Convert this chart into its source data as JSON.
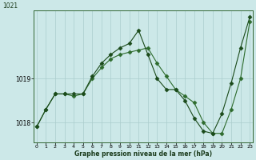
{
  "xlabel": "Graphe pression niveau de la mer (hPa)",
  "bg_color": "#cce8e8",
  "grid_color": "#aacccc",
  "line_color_1": "#2d6b2d",
  "line_color_2": "#1a4a1a",
  "marker": "D",
  "markersize": 2.5,
  "series1_x": [
    0,
    1,
    2,
    3,
    4,
    5,
    6,
    7,
    8,
    9,
    10,
    11,
    12,
    13,
    14,
    15,
    16,
    17,
    18,
    19,
    20,
    21,
    22,
    23
  ],
  "series1_y": [
    1017.9,
    1018.3,
    1018.65,
    1018.65,
    1018.6,
    1018.65,
    1019.0,
    1019.25,
    1019.45,
    1019.55,
    1019.6,
    1019.65,
    1019.7,
    1019.35,
    1019.05,
    1018.75,
    1018.6,
    1018.45,
    1018.0,
    1017.75,
    1017.75,
    1018.3,
    1019.0,
    1020.3
  ],
  "series2_x": [
    0,
    1,
    2,
    3,
    4,
    5,
    6,
    7,
    8,
    9,
    10,
    11,
    12,
    13,
    14,
    15,
    16,
    17,
    18,
    19,
    20,
    21,
    22,
    23
  ],
  "series2_y": [
    1017.9,
    1018.3,
    1018.65,
    1018.65,
    1018.65,
    1018.65,
    1019.05,
    1019.35,
    1019.55,
    1019.7,
    1019.8,
    1020.1,
    1019.55,
    1019.0,
    1018.75,
    1018.75,
    1018.5,
    1018.1,
    1017.8,
    1017.75,
    1018.2,
    1018.9,
    1019.7,
    1020.4
  ],
  "yticks": [
    1018,
    1019
  ],
  "ylim": [
    1017.55,
    1020.55
  ],
  "xlim": [
    -0.3,
    23.3
  ],
  "xticks": [
    0,
    1,
    2,
    3,
    4,
    5,
    6,
    7,
    8,
    9,
    10,
    11,
    12,
    13,
    14,
    15,
    16,
    17,
    18,
    19,
    20,
    21,
    22,
    23
  ],
  "spine_color": "#336633"
}
